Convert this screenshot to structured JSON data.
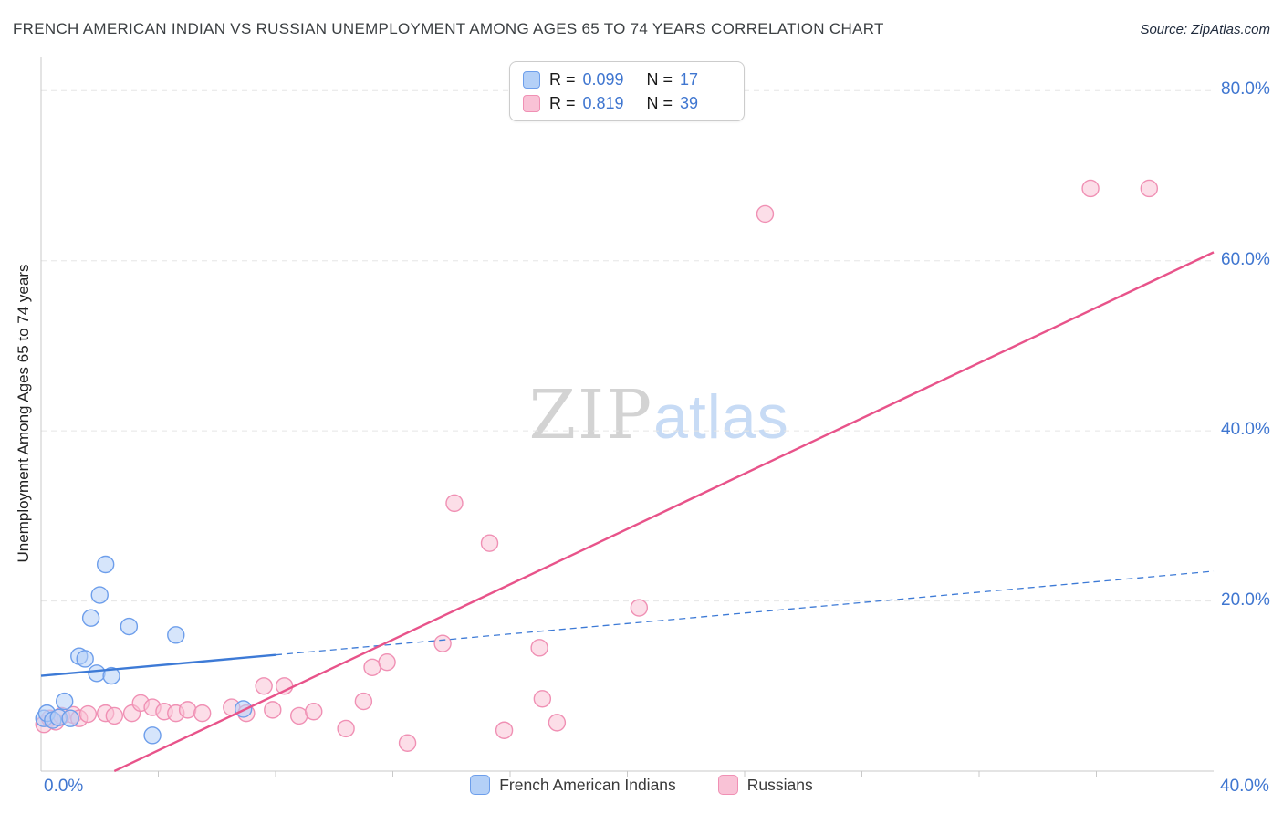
{
  "colors": {
    "accent_blue": "#3f76d0",
    "blue_fill": "#b4d0f7",
    "blue_stroke": "#6d9eeb",
    "pink_fill": "#f9c2d6",
    "pink_stroke": "#f090b4",
    "trend_blue": "#3d7ad6",
    "trend_pink": "#e8538a",
    "grid": "#e5e5e5",
    "axis": "#c9c9c9"
  },
  "header": {
    "title": "FRENCH AMERICAN INDIAN VS RUSSIAN UNEMPLOYMENT AMONG AGES 65 TO 74 YEARS CORRELATION CHART",
    "source": "Source: ZipAtlas.com"
  },
  "axes": {
    "y_label": "Unemployment Among Ages 65 to 74 years",
    "y_ticks": [
      "80.0%",
      "60.0%",
      "40.0%",
      "20.0%"
    ],
    "x_tick_left": "0.0%",
    "x_tick_right": "40.0%"
  },
  "legend_box": {
    "rows": [
      {
        "r_label": "R =",
        "r_value": "0.099",
        "n_label": "N =",
        "n_value": "17",
        "fill": "#b4d0f7",
        "stroke": "#6d9eeb"
      },
      {
        "r_label": "R =",
        "r_value": "0.819",
        "n_label": "N =",
        "n_value": "39",
        "fill": "#f9c2d6",
        "stroke": "#f090b4"
      }
    ]
  },
  "bottom_legend": {
    "items": [
      {
        "label": "French American Indians",
        "fill": "#b4d0f7",
        "stroke": "#6d9eeb"
      },
      {
        "label": "Russians",
        "fill": "#f9c2d6",
        "stroke": "#f090b4"
      }
    ]
  },
  "watermark": {
    "part1": "ZIP",
    "part2": "atlas"
  },
  "chart_data": {
    "type": "scatter",
    "title": "French American Indian vs Russian Unemployment Among Ages 65 to 74 Years Correlation Chart",
    "xlim": [
      0,
      0.4
    ],
    "ylim": [
      0,
      0.84
    ],
    "x_tick_labels": [
      "0.0%",
      "40.0%"
    ],
    "y_tick_labels": [
      "80.0%",
      "60.0%",
      "40.0%",
      "20.0%"
    ],
    "y_gridlines": [
      0.8,
      0.6,
      0.4,
      0.2
    ],
    "x_ticks": [
      0.04,
      0.08,
      0.12,
      0.16,
      0.2,
      0.24,
      0.28,
      0.32,
      0.36
    ],
    "grid": true,
    "series": [
      {
        "name": "Russians",
        "R": 0.819,
        "N": 39,
        "fill": "#f9c2d6",
        "stroke": "#f090b4",
        "points": [
          [
            0.001,
            0.055
          ],
          [
            0.003,
            0.062
          ],
          [
            0.005,
            0.058
          ],
          [
            0.007,
            0.065
          ],
          [
            0.011,
            0.066
          ],
          [
            0.013,
            0.062
          ],
          [
            0.016,
            0.067
          ],
          [
            0.022,
            0.068
          ],
          [
            0.025,
            0.065
          ],
          [
            0.031,
            0.068
          ],
          [
            0.034,
            0.08
          ],
          [
            0.038,
            0.075
          ],
          [
            0.042,
            0.07
          ],
          [
            0.046,
            0.068
          ],
          [
            0.05,
            0.072
          ],
          [
            0.055,
            0.068
          ],
          [
            0.065,
            0.075
          ],
          [
            0.07,
            0.068
          ],
          [
            0.076,
            0.1
          ],
          [
            0.079,
            0.072
          ],
          [
            0.083,
            0.1
          ],
          [
            0.088,
            0.065
          ],
          [
            0.093,
            0.07
          ],
          [
            0.104,
            0.05
          ],
          [
            0.11,
            0.082
          ],
          [
            0.113,
            0.122
          ],
          [
            0.118,
            0.128
          ],
          [
            0.125,
            0.033
          ],
          [
            0.137,
            0.15
          ],
          [
            0.141,
            0.315
          ],
          [
            0.153,
            0.268
          ],
          [
            0.158,
            0.048
          ],
          [
            0.17,
            0.145
          ],
          [
            0.171,
            0.085
          ],
          [
            0.176,
            0.057
          ],
          [
            0.204,
            0.192
          ],
          [
            0.247,
            0.655
          ],
          [
            0.358,
            0.685
          ],
          [
            0.378,
            0.685
          ]
        ]
      },
      {
        "name": "French American Indians",
        "R": 0.099,
        "N": 17,
        "fill": "#b4d0f7",
        "stroke": "#6d9eeb",
        "points": [
          [
            0.001,
            0.062
          ],
          [
            0.002,
            0.068
          ],
          [
            0.004,
            0.06
          ],
          [
            0.006,
            0.063
          ],
          [
            0.008,
            0.082
          ],
          [
            0.01,
            0.062
          ],
          [
            0.013,
            0.135
          ],
          [
            0.015,
            0.132
          ],
          [
            0.017,
            0.18
          ],
          [
            0.019,
            0.115
          ],
          [
            0.02,
            0.207
          ],
          [
            0.022,
            0.243
          ],
          [
            0.024,
            0.112
          ],
          [
            0.03,
            0.17
          ],
          [
            0.038,
            0.042
          ],
          [
            0.046,
            0.16
          ],
          [
            0.069,
            0.073
          ]
        ]
      }
    ],
    "trend_lines": [
      {
        "series": "French American Indians",
        "color": "#3d7ad6",
        "start": [
          0,
          0.112
        ],
        "end": [
          0.4,
          0.235
        ],
        "solid_until": 0.08
      },
      {
        "series": "Russians",
        "color": "#e8538a",
        "start": [
          0.025,
          0.0
        ],
        "end": [
          0.4,
          0.61
        ]
      }
    ],
    "legend_position": "bottom"
  }
}
